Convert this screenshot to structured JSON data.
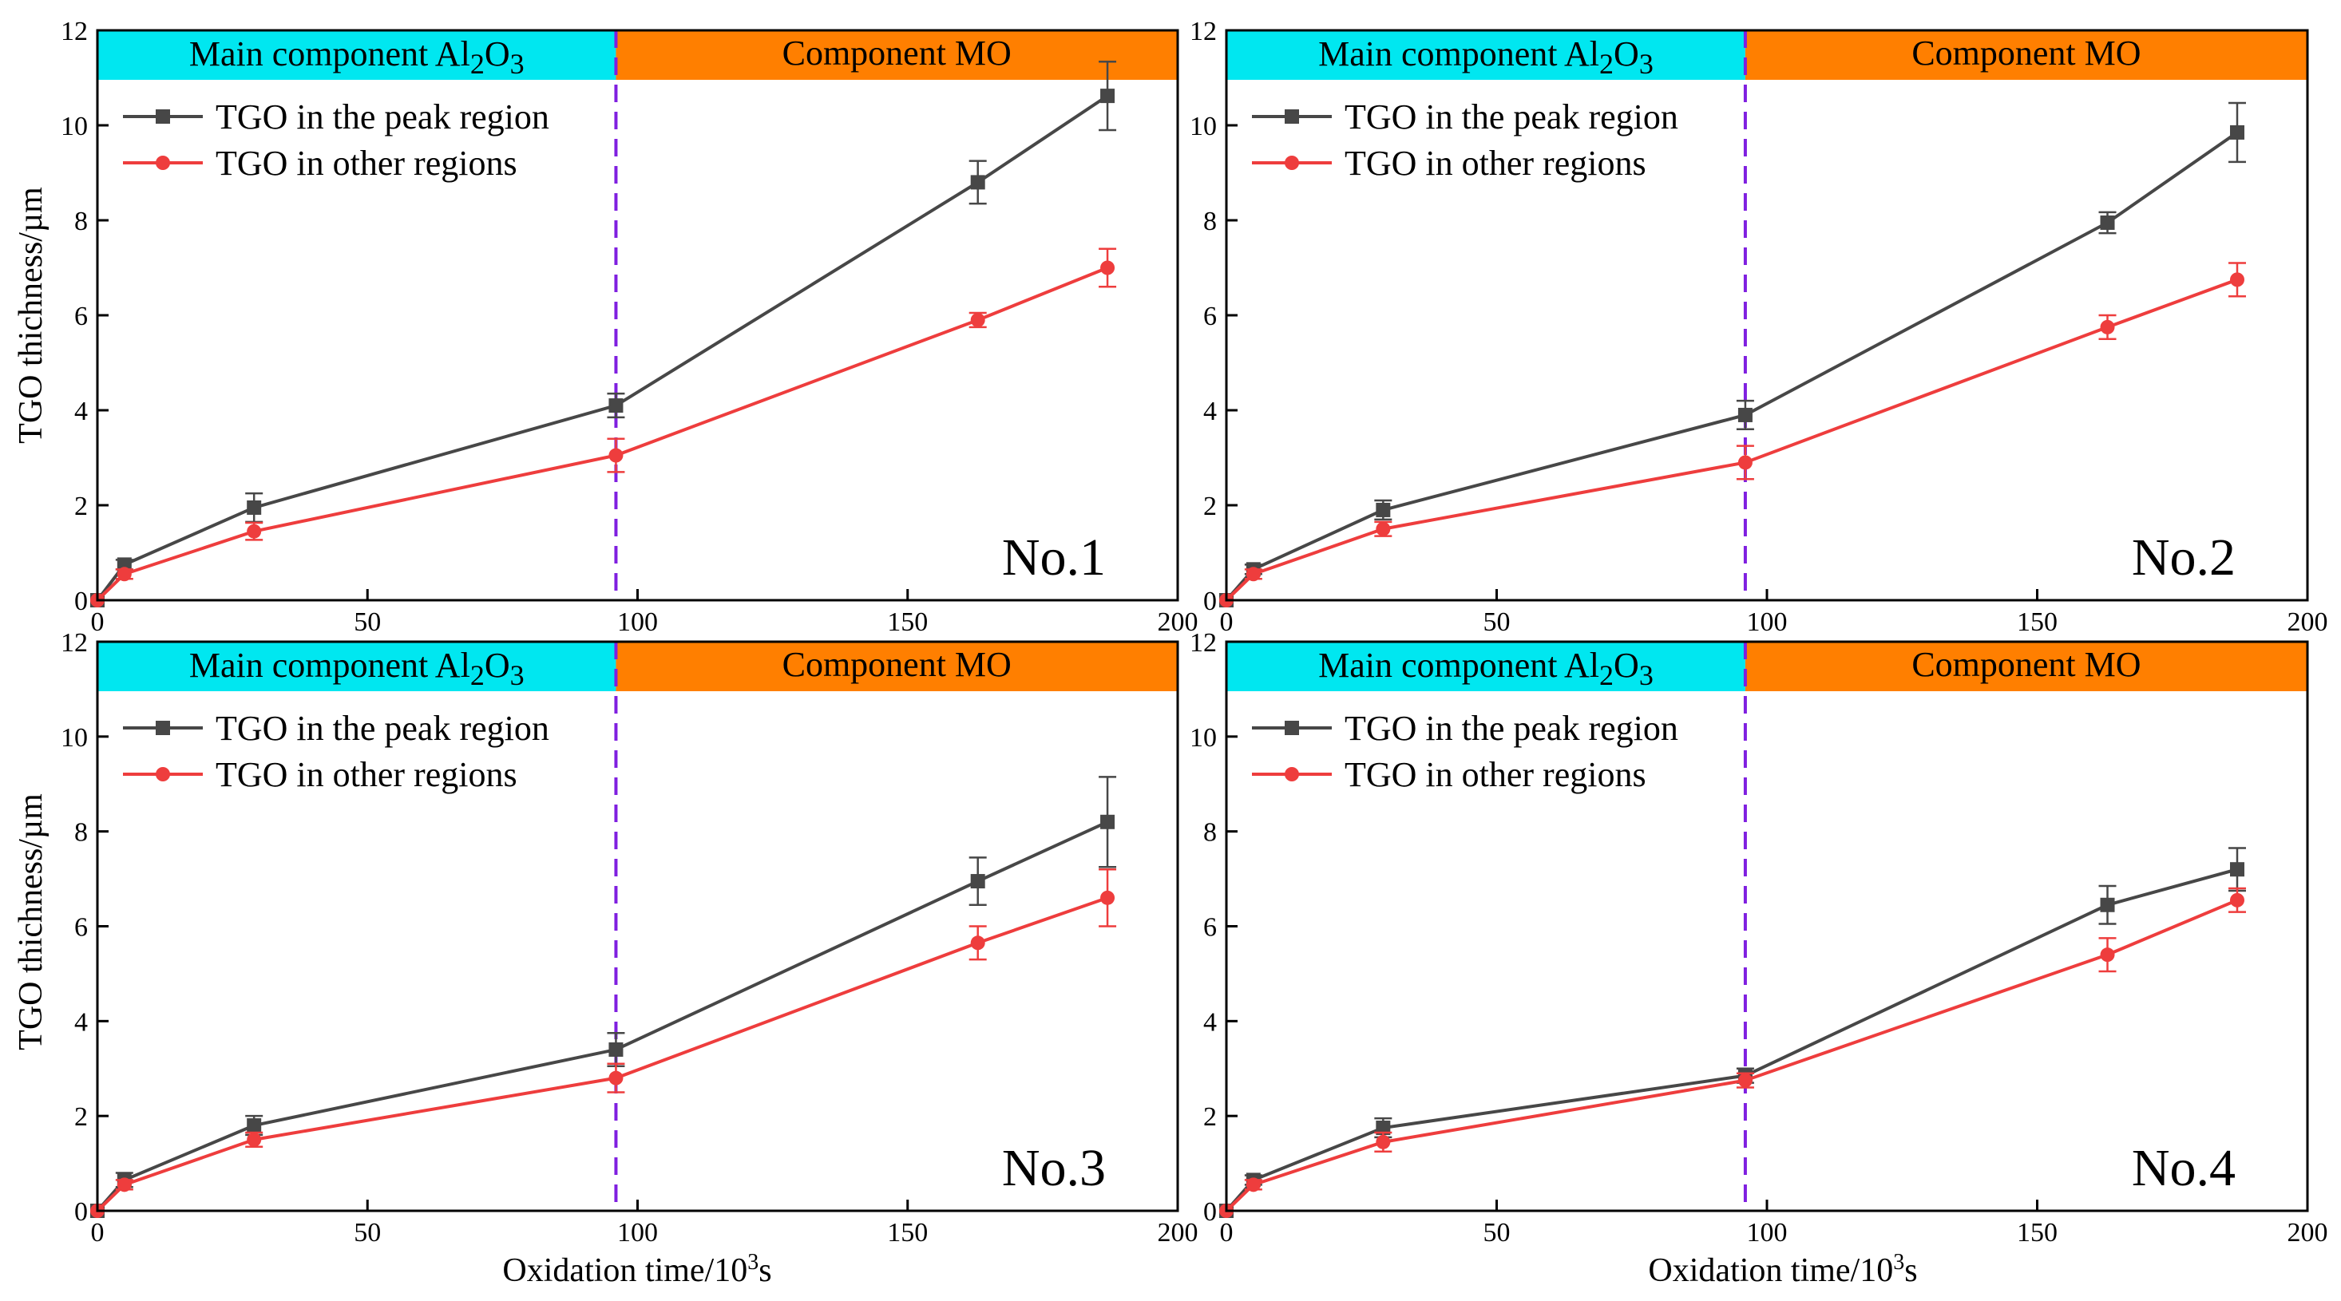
{
  "figure": {
    "y_axis_label": "TGO thichness/µm",
    "x_axis_label_main": "Oxidation time/10",
    "x_axis_label_sup": "3",
    "x_axis_label_unit": "s"
  },
  "colors": {
    "peak_series": "#474747",
    "other_series": "#ee3d3d",
    "band_left": "#00e7f0",
    "band_right": "#ff7f00",
    "divider": "#7f1fe0",
    "axis": "#000000"
  },
  "chart_data": [
    {
      "type": "line",
      "panel_label": "No.1",
      "band_left": {
        "text": "Main component Al",
        "sub1": "2",
        "mid": "O",
        "sub2": "3"
      },
      "band_right": {
        "text": "Component MO"
      },
      "divider_x": 96,
      "xlim": [
        0,
        200
      ],
      "ylim": [
        0,
        12
      ],
      "xticks": [
        0,
        50,
        100,
        150,
        200
      ],
      "yticks": [
        0,
        2,
        4,
        6,
        8,
        10,
        12
      ],
      "series": [
        {
          "name": "TGO in the peak region",
          "x": [
            0,
            5,
            29,
            96,
            163,
            187
          ],
          "y": [
            0,
            0.75,
            1.95,
            4.1,
            8.8,
            10.62
          ],
          "err": [
            0,
            0.1,
            0.3,
            0.25,
            0.45,
            0.72
          ]
        },
        {
          "name": "TGO in other regions",
          "x": [
            0,
            5,
            29,
            96,
            163,
            187
          ],
          "y": [
            0,
            0.55,
            1.45,
            3.05,
            5.9,
            7.0
          ],
          "err": [
            0,
            0.1,
            0.18,
            0.35,
            0.15,
            0.4
          ]
        }
      ]
    },
    {
      "type": "line",
      "panel_label": "No.2",
      "band_left": {
        "text": "Main component Al",
        "sub1": "2",
        "mid": "O",
        "sub2": "3"
      },
      "band_right": {
        "text": "Component MO"
      },
      "divider_x": 96,
      "xlim": [
        0,
        200
      ],
      "ylim": [
        0,
        12
      ],
      "xticks": [
        0,
        50,
        100,
        150,
        200
      ],
      "yticks": [
        0,
        2,
        4,
        6,
        8,
        10,
        12
      ],
      "series": [
        {
          "name": "TGO in the peak region",
          "x": [
            0,
            5,
            29,
            96,
            163,
            187
          ],
          "y": [
            0,
            0.65,
            1.9,
            3.9,
            7.95,
            9.85
          ],
          "err": [
            0,
            0.1,
            0.2,
            0.3,
            0.22,
            0.62
          ]
        },
        {
          "name": "TGO in other regions",
          "x": [
            0,
            5,
            29,
            96,
            163,
            187
          ],
          "y": [
            0,
            0.55,
            1.5,
            2.9,
            5.75,
            6.75
          ],
          "err": [
            0,
            0.1,
            0.15,
            0.35,
            0.25,
            0.35
          ]
        }
      ]
    },
    {
      "type": "line",
      "panel_label": "No.3",
      "band_left": {
        "text": "Main component Al",
        "sub1": "2",
        "mid": "O",
        "sub2": "3"
      },
      "band_right": {
        "text": "Component MO"
      },
      "divider_x": 96,
      "xlim": [
        0,
        200
      ],
      "ylim": [
        0,
        12
      ],
      "xticks": [
        0,
        50,
        100,
        150,
        200
      ],
      "yticks": [
        0,
        2,
        4,
        6,
        8,
        10,
        12
      ],
      "series": [
        {
          "name": "TGO in the peak region",
          "x": [
            0,
            5,
            29,
            96,
            163,
            187
          ],
          "y": [
            0,
            0.65,
            1.8,
            3.4,
            6.95,
            8.2
          ],
          "err": [
            0,
            0.15,
            0.2,
            0.35,
            0.5,
            0.95
          ]
        },
        {
          "name": "TGO in other regions",
          "x": [
            0,
            5,
            29,
            96,
            163,
            187
          ],
          "y": [
            0,
            0.55,
            1.5,
            2.8,
            5.65,
            6.6
          ],
          "err": [
            0,
            0.1,
            0.15,
            0.3,
            0.35,
            0.6
          ]
        }
      ]
    },
    {
      "type": "line",
      "panel_label": "No.4",
      "band_left": {
        "text": "Main component Al",
        "sub1": "2",
        "mid": "O",
        "sub2": "3"
      },
      "band_right": {
        "text": "Component MO"
      },
      "divider_x": 96,
      "xlim": [
        0,
        200
      ],
      "ylim": [
        0,
        12
      ],
      "xticks": [
        0,
        50,
        100,
        150,
        200
      ],
      "yticks": [
        0,
        2,
        4,
        6,
        8,
        10,
        12
      ],
      "series": [
        {
          "name": "TGO in the peak region",
          "x": [
            0,
            5,
            29,
            96,
            163,
            187
          ],
          "y": [
            0,
            0.65,
            1.75,
            2.85,
            6.45,
            7.2
          ],
          "err": [
            0,
            0.1,
            0.2,
            0.15,
            0.4,
            0.45
          ]
        },
        {
          "name": "TGO in other regions",
          "x": [
            0,
            5,
            29,
            96,
            163,
            187
          ],
          "y": [
            0,
            0.55,
            1.45,
            2.75,
            5.4,
            6.55
          ],
          "err": [
            0,
            0.1,
            0.2,
            0.15,
            0.35,
            0.25
          ]
        }
      ]
    }
  ]
}
